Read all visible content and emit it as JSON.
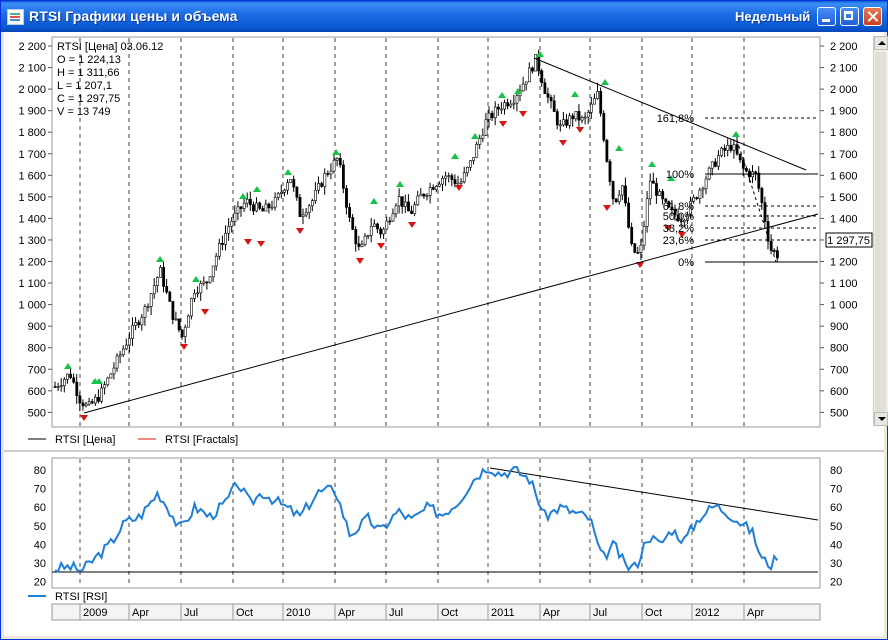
{
  "window": {
    "title": "RTSI Графики цены и объема",
    "period": "Недельный"
  },
  "ohlc": {
    "header": "RTSI [Цена] 03.06.12",
    "o": "O = 1 224,13",
    "h": "H = 1 311,66",
    "l": "L = 1 207,1",
    "c": "C = 1 297,75",
    "v": "V = 13 749"
  },
  "legend": {
    "price": "RTSI [Цена]",
    "fractals": "RTSI [Fractals]",
    "rsi": "RTSI [RSI]"
  },
  "price_axis": [
    "2 200",
    "2 100",
    "2 000",
    "1 900",
    "1 800",
    "1 700",
    "1 600",
    "1 500",
    "1 400",
    "1 300",
    "1 200",
    "1 100",
    "1 000",
    "900",
    "800",
    "700",
    "600",
    "500"
  ],
  "last_price": "1 297,75",
  "fib_labels": [
    "161,8%",
    "100%",
    "61,8%",
    "50,0%",
    "38,2%",
    "23,6%",
    "0%"
  ],
  "rsi_axis": [
    "80",
    "70",
    "60",
    "50",
    "40",
    "30",
    "20"
  ],
  "time_axis": [
    "2009",
    "Apr",
    "Jul",
    "Oct",
    "2010",
    "Apr",
    "Jul",
    "Oct",
    "2011",
    "Apr",
    "Jul",
    "Oct",
    "2012",
    "Apr"
  ],
  "colors": {
    "titlebar": "#0a58d0",
    "rsi": "#1f7ed6",
    "fractal_up": "#16c34a",
    "fractal_down": "#d81414"
  }
}
